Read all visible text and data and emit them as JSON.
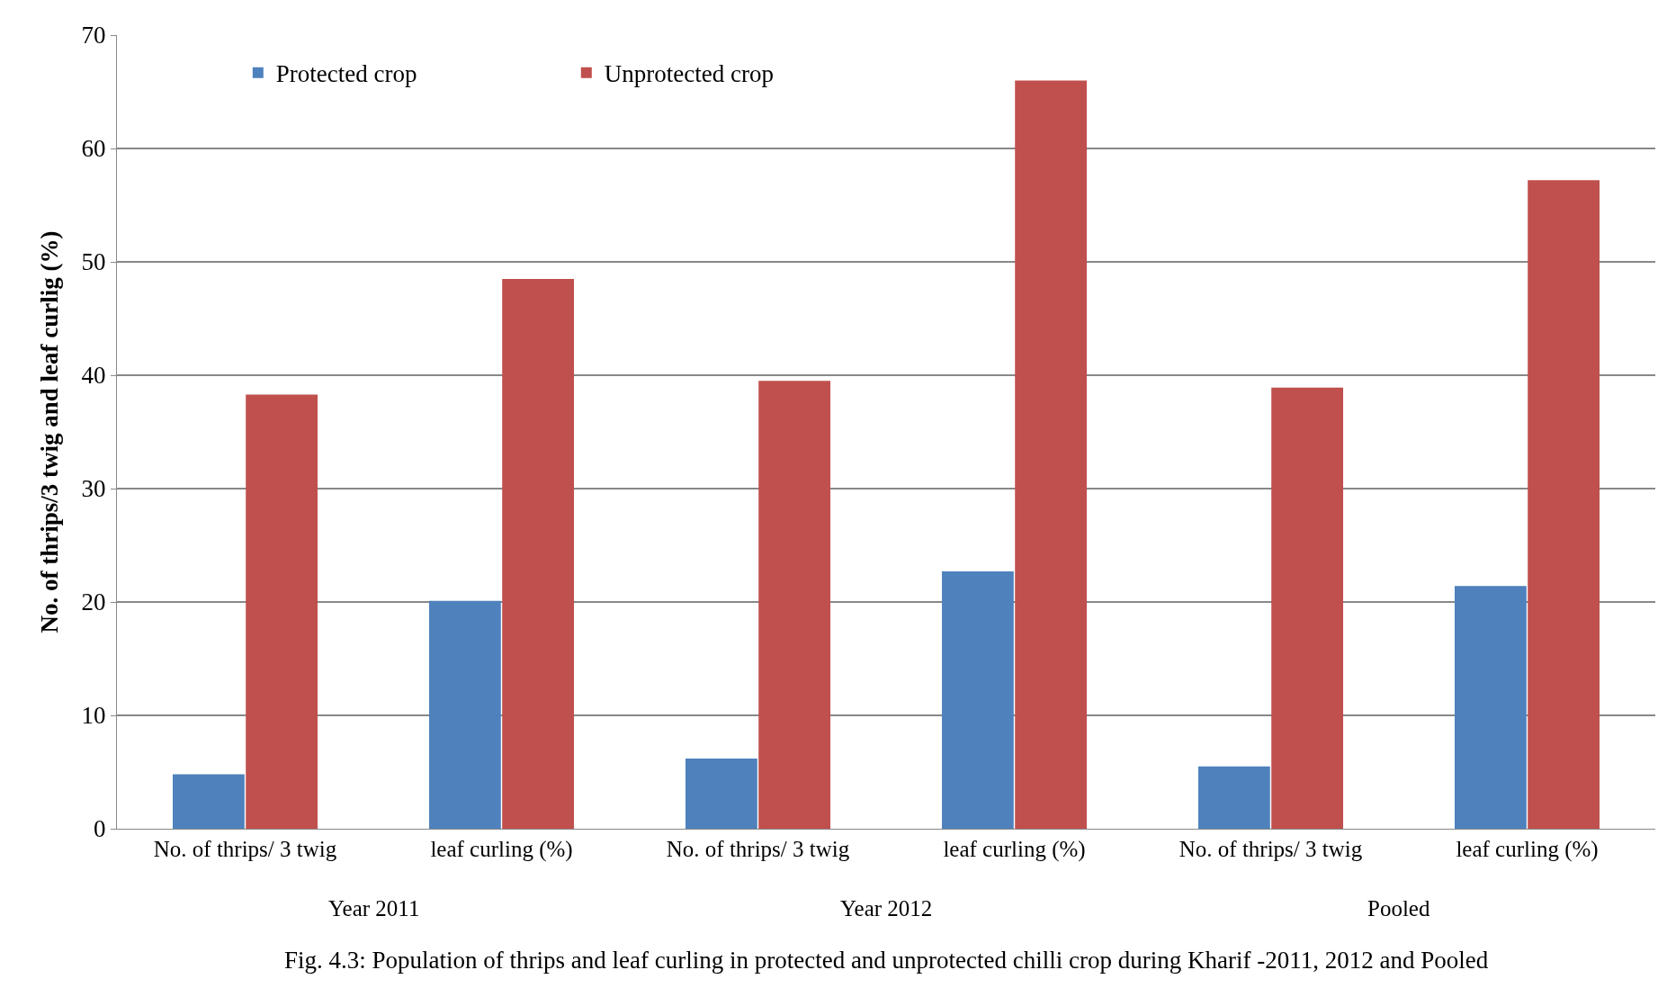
{
  "chart_data": {
    "type": "bar",
    "ylabel": "No. of thrips/3 twig and leaf curlig (%)",
    "categories": [
      "No. of thrips/ 3 twig",
      "leaf curling (%)",
      "No. of thrips/ 3 twig",
      "leaf curling (%)",
      "No. of thrips/ 3 twig",
      "leaf curling (%)"
    ],
    "series": [
      {
        "name": "Protected crop",
        "color": "#4f81bd",
        "values": [
          4.8,
          20.1,
          6.2,
          22.7,
          5.5,
          21.4
        ]
      },
      {
        "name": "Unprotected crop",
        "color": "#c0504d",
        "values": [
          38.3,
          48.5,
          39.5,
          66.0,
          38.9,
          57.2
        ]
      }
    ],
    "ylim": [
      0,
      70
    ],
    "yticks": [
      0,
      10,
      20,
      30,
      40,
      50,
      60,
      70
    ],
    "grid": "y",
    "legend": "top left",
    "annotations": [
      "Year 2011",
      "Year 2012",
      "Pooled",
      "Fig. 4.3: Population of thrips and leaf curling in protected and unprotected chilli crop during Kharif -2011, 2012 and Pooled"
    ]
  }
}
